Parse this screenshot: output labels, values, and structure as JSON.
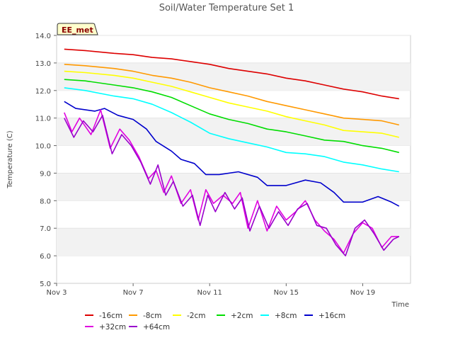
{
  "chart_data": {
    "type": "line",
    "title": "Soil/Water Temperature Set 1",
    "badge": "EE_met",
    "xlabel": "Time",
    "ylabel": "Temperature (C)",
    "xlim": [
      3,
      21.5
    ],
    "ylim": [
      5.0,
      14.0
    ],
    "x_ticks": [
      3,
      7,
      11,
      15,
      19
    ],
    "x_tick_labels": [
      "Nov 3",
      "Nov 7",
      "Nov 11",
      "Nov 15",
      "Nov 19"
    ],
    "y_ticks": [
      5.0,
      6.0,
      7.0,
      8.0,
      9.0,
      10.0,
      11.0,
      12.0,
      13.0,
      14.0
    ],
    "y_tick_labels": [
      "5.0",
      "6.0",
      "7.0",
      "8.0",
      "9.0",
      "10.0",
      "11.0",
      "12.0",
      "13.0",
      "14.0"
    ],
    "grid": "horizontal bands",
    "legend_position": "bottom",
    "series": [
      {
        "name": "-16cm",
        "color": "#dd0000",
        "x": [
          3.4,
          4.5,
          6,
          7,
          8,
          9,
          10,
          11,
          12,
          13,
          14,
          15,
          16,
          17,
          18,
          19,
          20,
          20.9
        ],
        "y": [
          13.5,
          13.45,
          13.35,
          13.3,
          13.2,
          13.15,
          13.05,
          12.95,
          12.8,
          12.7,
          12.6,
          12.45,
          12.35,
          12.2,
          12.05,
          11.95,
          11.8,
          11.7
        ]
      },
      {
        "name": "-8cm",
        "color": "#ff9900",
        "x": [
          3.4,
          4.5,
          6,
          7,
          8,
          9,
          10,
          11,
          12,
          13,
          14,
          15,
          16,
          17,
          18,
          19,
          20,
          20.9
        ],
        "y": [
          12.95,
          12.9,
          12.8,
          12.7,
          12.55,
          12.45,
          12.3,
          12.1,
          11.95,
          11.8,
          11.6,
          11.45,
          11.3,
          11.15,
          11.0,
          10.95,
          10.9,
          10.75
        ]
      },
      {
        "name": "-2cm",
        "color": "#ffff00",
        "x": [
          3.4,
          4.5,
          6,
          7,
          8,
          9,
          10,
          11,
          12,
          13,
          14,
          15,
          16,
          17,
          18,
          19,
          20,
          20.9
        ],
        "y": [
          12.7,
          12.65,
          12.55,
          12.45,
          12.3,
          12.15,
          11.95,
          11.75,
          11.55,
          11.4,
          11.25,
          11.05,
          10.9,
          10.75,
          10.55,
          10.5,
          10.45,
          10.3
        ]
      },
      {
        "name": "+2cm",
        "color": "#00dd00",
        "x": [
          3.4,
          4.5,
          6,
          7,
          8,
          9,
          10,
          11,
          12,
          13,
          14,
          15,
          16,
          17,
          18,
          19,
          20,
          20.9
        ],
        "y": [
          12.4,
          12.35,
          12.2,
          12.1,
          11.95,
          11.75,
          11.45,
          11.15,
          10.95,
          10.8,
          10.6,
          10.5,
          10.35,
          10.2,
          10.15,
          10.0,
          9.9,
          9.75
        ]
      },
      {
        "name": "+8cm",
        "color": "#00ffff",
        "x": [
          3.4,
          4.5,
          6,
          7,
          8,
          9,
          10,
          11,
          12,
          13,
          14,
          15,
          16,
          17,
          18,
          19,
          20,
          20.9
        ],
        "y": [
          12.1,
          12.0,
          11.8,
          11.7,
          11.5,
          11.2,
          10.85,
          10.45,
          10.25,
          10.1,
          9.95,
          9.75,
          9.7,
          9.6,
          9.4,
          9.3,
          9.15,
          9.05
        ]
      },
      {
        "name": "+16cm",
        "color": "#0000cc",
        "x": [
          3.4,
          4.0,
          5.0,
          5.5,
          6.2,
          7.0,
          7.7,
          8.2,
          9.0,
          9.5,
          10.2,
          10.8,
          11.5,
          12.5,
          13.5,
          14.0,
          15.0,
          16.0,
          16.8,
          17.5,
          18.0,
          19.0,
          19.8,
          20.5,
          20.9
        ],
        "y": [
          11.6,
          11.35,
          11.25,
          11.35,
          11.1,
          10.95,
          10.6,
          10.15,
          9.8,
          9.5,
          9.35,
          8.95,
          8.95,
          9.05,
          8.85,
          8.55,
          8.55,
          8.75,
          8.65,
          8.3,
          7.95,
          7.95,
          8.15,
          7.95,
          7.8
        ]
      },
      {
        "name": "+32cm",
        "color": "#e000e0",
        "x": [
          3.4,
          3.8,
          4.2,
          4.8,
          5.3,
          5.8,
          6.3,
          6.8,
          7.3,
          7.8,
          8.2,
          8.6,
          9.0,
          9.5,
          10.0,
          10.4,
          10.8,
          11.2,
          11.7,
          12.2,
          12.6,
          13.0,
          13.5,
          14.0,
          14.5,
          15.0,
          15.5,
          16.0,
          16.5,
          17.0,
          17.5,
          18.0,
          18.5,
          19.0,
          19.5,
          20.0,
          20.5,
          20.9
        ],
        "y": [
          11.2,
          10.5,
          11.0,
          10.4,
          11.3,
          9.9,
          10.6,
          10.2,
          9.6,
          8.8,
          9.1,
          8.3,
          8.9,
          7.9,
          8.4,
          7.3,
          8.4,
          7.9,
          8.2,
          7.9,
          8.3,
          7.0,
          8.0,
          6.9,
          7.8,
          7.3,
          7.6,
          8.0,
          7.3,
          6.9,
          6.6,
          6.1,
          6.8,
          7.2,
          7.0,
          6.3,
          6.7,
          6.7
        ]
      },
      {
        "name": "+64cm",
        "color": "#9900cc",
        "x": [
          3.4,
          3.9,
          4.4,
          4.9,
          5.4,
          5.9,
          6.4,
          6.9,
          7.4,
          7.9,
          8.3,
          8.7,
          9.1,
          9.6,
          10.1,
          10.5,
          10.9,
          11.3,
          11.8,
          12.3,
          12.7,
          13.1,
          13.6,
          14.1,
          14.6,
          15.1,
          15.6,
          16.1,
          16.6,
          17.1,
          17.6,
          18.1,
          18.6,
          19.1,
          19.6,
          20.1,
          20.6,
          20.9
        ],
        "y": [
          11.0,
          10.3,
          10.9,
          10.5,
          11.1,
          9.7,
          10.4,
          10.0,
          9.4,
          8.6,
          9.3,
          8.2,
          8.7,
          7.8,
          8.2,
          7.1,
          8.2,
          7.6,
          8.3,
          7.7,
          8.1,
          6.9,
          7.8,
          7.0,
          7.6,
          7.1,
          7.7,
          7.9,
          7.1,
          7.0,
          6.4,
          6.0,
          7.0,
          7.3,
          6.8,
          6.2,
          6.6,
          6.7
        ]
      }
    ]
  }
}
